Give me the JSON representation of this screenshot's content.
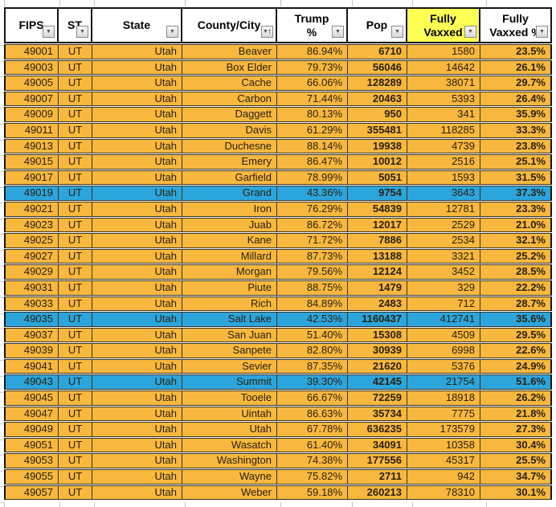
{
  "colors": {
    "row_orange": "#F8B83E",
    "row_blue": "#2CA5DC",
    "header_highlight_yellow": "#FDFF54",
    "header_bg": "#FFFFFF"
  },
  "table": {
    "columns": [
      {
        "id": "fips",
        "lines": [
          "FIPS"
        ],
        "filter": "filter-icon",
        "header_bg": "header_bg"
      },
      {
        "id": "st",
        "lines": [
          "ST"
        ],
        "filter": "filter-icon",
        "header_bg": "header_bg"
      },
      {
        "id": "state",
        "lines": [
          "State"
        ],
        "filter": "filter-icon",
        "header_bg": "header_bg"
      },
      {
        "id": "county",
        "lines": [
          "County/City"
        ],
        "filter": "filter-sort-asc-icon",
        "header_bg": "header_bg"
      },
      {
        "id": "trump_pct",
        "lines": [
          "Trump",
          "%"
        ],
        "filter": "filter-icon",
        "header_bg": "header_bg"
      },
      {
        "id": "pop",
        "lines": [
          "Pop"
        ],
        "filter": "filter-icon",
        "header_bg": "header_bg"
      },
      {
        "id": "fully_vaxxed",
        "lines": [
          "Fully",
          "Vaxxed"
        ],
        "filter": "filter-icon",
        "header_bg": "header_highlight_yellow"
      },
      {
        "id": "fully_vaxxed_pct",
        "lines": [
          "Fully",
          "Vaxxed %"
        ],
        "filter": "filter-icon",
        "header_bg": "header_bg"
      }
    ],
    "rows": [
      {
        "fips": "49001",
        "st": "UT",
        "state": "Utah",
        "county": "Beaver",
        "trump_pct": "86.94%",
        "pop": "6710",
        "fully_vaxxed": "1580",
        "fully_vaxxed_pct": "23.5%",
        "highlight": "orange"
      },
      {
        "fips": "49003",
        "st": "UT",
        "state": "Utah",
        "county": "Box Elder",
        "trump_pct": "79.73%",
        "pop": "56046",
        "fully_vaxxed": "14642",
        "fully_vaxxed_pct": "26.1%",
        "highlight": "orange"
      },
      {
        "fips": "49005",
        "st": "UT",
        "state": "Utah",
        "county": "Cache",
        "trump_pct": "66.06%",
        "pop": "128289",
        "fully_vaxxed": "38071",
        "fully_vaxxed_pct": "29.7%",
        "highlight": "orange"
      },
      {
        "fips": "49007",
        "st": "UT",
        "state": "Utah",
        "county": "Carbon",
        "trump_pct": "71.44%",
        "pop": "20463",
        "fully_vaxxed": "5393",
        "fully_vaxxed_pct": "26.4%",
        "highlight": "orange"
      },
      {
        "fips": "49009",
        "st": "UT",
        "state": "Utah",
        "county": "Daggett",
        "trump_pct": "80.13%",
        "pop": "950",
        "fully_vaxxed": "341",
        "fully_vaxxed_pct": "35.9%",
        "highlight": "orange"
      },
      {
        "fips": "49011",
        "st": "UT",
        "state": "Utah",
        "county": "Davis",
        "trump_pct": "61.29%",
        "pop": "355481",
        "fully_vaxxed": "118285",
        "fully_vaxxed_pct": "33.3%",
        "highlight": "orange"
      },
      {
        "fips": "49013",
        "st": "UT",
        "state": "Utah",
        "county": "Duchesne",
        "trump_pct": "88.14%",
        "pop": "19938",
        "fully_vaxxed": "4739",
        "fully_vaxxed_pct": "23.8%",
        "highlight": "orange"
      },
      {
        "fips": "49015",
        "st": "UT",
        "state": "Utah",
        "county": "Emery",
        "trump_pct": "86.47%",
        "pop": "10012",
        "fully_vaxxed": "2516",
        "fully_vaxxed_pct": "25.1%",
        "highlight": "orange"
      },
      {
        "fips": "49017",
        "st": "UT",
        "state": "Utah",
        "county": "Garfield",
        "trump_pct": "78.99%",
        "pop": "5051",
        "fully_vaxxed": "1593",
        "fully_vaxxed_pct": "31.5%",
        "highlight": "orange"
      },
      {
        "fips": "49019",
        "st": "UT",
        "state": "Utah",
        "county": "Grand",
        "trump_pct": "43.36%",
        "pop": "9754",
        "fully_vaxxed": "3643",
        "fully_vaxxed_pct": "37.3%",
        "highlight": "blue"
      },
      {
        "fips": "49021",
        "st": "UT",
        "state": "Utah",
        "county": "Iron",
        "trump_pct": "76.29%",
        "pop": "54839",
        "fully_vaxxed": "12781",
        "fully_vaxxed_pct": "23.3%",
        "highlight": "orange"
      },
      {
        "fips": "49023",
        "st": "UT",
        "state": "Utah",
        "county": "Juab",
        "trump_pct": "86.72%",
        "pop": "12017",
        "fully_vaxxed": "2529",
        "fully_vaxxed_pct": "21.0%",
        "highlight": "orange"
      },
      {
        "fips": "49025",
        "st": "UT",
        "state": "Utah",
        "county": "Kane",
        "trump_pct": "71.72%",
        "pop": "7886",
        "fully_vaxxed": "2534",
        "fully_vaxxed_pct": "32.1%",
        "highlight": "orange"
      },
      {
        "fips": "49027",
        "st": "UT",
        "state": "Utah",
        "county": "Millard",
        "trump_pct": "87.73%",
        "pop": "13188",
        "fully_vaxxed": "3321",
        "fully_vaxxed_pct": "25.2%",
        "highlight": "orange"
      },
      {
        "fips": "49029",
        "st": "UT",
        "state": "Utah",
        "county": "Morgan",
        "trump_pct": "79.56%",
        "pop": "12124",
        "fully_vaxxed": "3452",
        "fully_vaxxed_pct": "28.5%",
        "highlight": "orange"
      },
      {
        "fips": "49031",
        "st": "UT",
        "state": "Utah",
        "county": "Piute",
        "trump_pct": "88.75%",
        "pop": "1479",
        "fully_vaxxed": "329",
        "fully_vaxxed_pct": "22.2%",
        "highlight": "orange"
      },
      {
        "fips": "49033",
        "st": "UT",
        "state": "Utah",
        "county": "Rich",
        "trump_pct": "84.89%",
        "pop": "2483",
        "fully_vaxxed": "712",
        "fully_vaxxed_pct": "28.7%",
        "highlight": "orange"
      },
      {
        "fips": "49035",
        "st": "UT",
        "state": "Utah",
        "county": "Salt Lake",
        "trump_pct": "42.53%",
        "pop": "1160437",
        "fully_vaxxed": "412741",
        "fully_vaxxed_pct": "35.6%",
        "highlight": "blue"
      },
      {
        "fips": "49037",
        "st": "UT",
        "state": "Utah",
        "county": "San Juan",
        "trump_pct": "51.40%",
        "pop": "15308",
        "fully_vaxxed": "4509",
        "fully_vaxxed_pct": "29.5%",
        "highlight": "orange"
      },
      {
        "fips": "49039",
        "st": "UT",
        "state": "Utah",
        "county": "Sanpete",
        "trump_pct": "82.80%",
        "pop": "30939",
        "fully_vaxxed": "6998",
        "fully_vaxxed_pct": "22.6%",
        "highlight": "orange"
      },
      {
        "fips": "49041",
        "st": "UT",
        "state": "Utah",
        "county": "Sevier",
        "trump_pct": "87.35%",
        "pop": "21620",
        "fully_vaxxed": "5376",
        "fully_vaxxed_pct": "24.9%",
        "highlight": "orange"
      },
      {
        "fips": "49043",
        "st": "UT",
        "state": "Utah",
        "county": "Summit",
        "trump_pct": "39.30%",
        "pop": "42145",
        "fully_vaxxed": "21754",
        "fully_vaxxed_pct": "51.6%",
        "highlight": "blue"
      },
      {
        "fips": "49045",
        "st": "UT",
        "state": "Utah",
        "county": "Tooele",
        "trump_pct": "66.67%",
        "pop": "72259",
        "fully_vaxxed": "18918",
        "fully_vaxxed_pct": "26.2%",
        "highlight": "orange"
      },
      {
        "fips": "49047",
        "st": "UT",
        "state": "Utah",
        "county": "Uintah",
        "trump_pct": "86.63%",
        "pop": "35734",
        "fully_vaxxed": "7775",
        "fully_vaxxed_pct": "21.8%",
        "highlight": "orange"
      },
      {
        "fips": "49049",
        "st": "UT",
        "state": "Utah",
        "county": "Utah",
        "trump_pct": "67.78%",
        "pop": "636235",
        "fully_vaxxed": "173579",
        "fully_vaxxed_pct": "27.3%",
        "highlight": "orange"
      },
      {
        "fips": "49051",
        "st": "UT",
        "state": "Utah",
        "county": "Wasatch",
        "trump_pct": "61.40%",
        "pop": "34091",
        "fully_vaxxed": "10358",
        "fully_vaxxed_pct": "30.4%",
        "highlight": "orange"
      },
      {
        "fips": "49053",
        "st": "UT",
        "state": "Utah",
        "county": "Washington",
        "trump_pct": "74.38%",
        "pop": "177556",
        "fully_vaxxed": "45317",
        "fully_vaxxed_pct": "25.5%",
        "highlight": "orange"
      },
      {
        "fips": "49055",
        "st": "UT",
        "state": "Utah",
        "county": "Wayne",
        "trump_pct": "75.82%",
        "pop": "2711",
        "fully_vaxxed": "942",
        "fully_vaxxed_pct": "34.7%",
        "highlight": "orange"
      },
      {
        "fips": "49057",
        "st": "UT",
        "state": "Utah",
        "county": "Weber",
        "trump_pct": "59.18%",
        "pop": "260213",
        "fully_vaxxed": "78310",
        "fully_vaxxed_pct": "30.1%",
        "highlight": "orange"
      }
    ]
  }
}
